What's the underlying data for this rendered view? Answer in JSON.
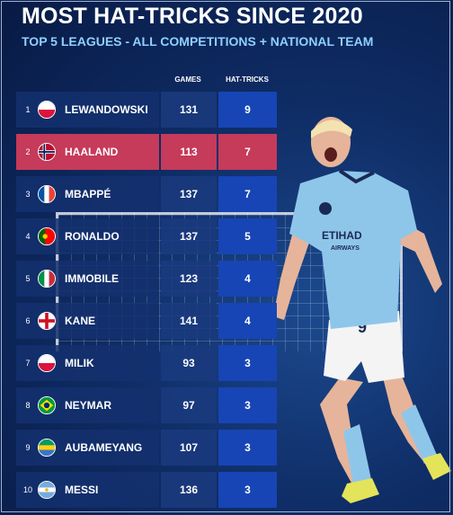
{
  "title": "MOST HAT-TRICKS SINCE 2020",
  "subtitle": "TOP 5 LEAGUES - ALL COMPETITIONS + NATIONAL TEAM",
  "columns": {
    "games": "GAMES",
    "hat_tricks": "HAT-TRICKS"
  },
  "colors": {
    "highlight": "#c63a5a",
    "hat_cell": "#1745b5",
    "subtitle": "#8fd0ff"
  },
  "rows": [
    {
      "rank": "1",
      "flag": "poland-flag-icon",
      "name": "LEWANDOWSKI",
      "games": "131",
      "hat_tricks": "9"
    },
    {
      "rank": "2",
      "flag": "norway-flag-icon",
      "name": "HAALAND",
      "games": "113",
      "hat_tricks": "7",
      "highlight": true
    },
    {
      "rank": "3",
      "flag": "france-flag-icon",
      "name": "MBAPPÉ",
      "games": "137",
      "hat_tricks": "7"
    },
    {
      "rank": "4",
      "flag": "portugal-flag-icon",
      "name": "RONALDO",
      "games": "137",
      "hat_tricks": "5"
    },
    {
      "rank": "5",
      "flag": "italy-flag-icon",
      "name": "IMMOBILE",
      "games": "123",
      "hat_tricks": "4"
    },
    {
      "rank": "6",
      "flag": "england-flag-icon",
      "name": "KANE",
      "games": "141",
      "hat_tricks": "4"
    },
    {
      "rank": "7",
      "flag": "poland-flag-icon",
      "name": "MILIK",
      "games": "93",
      "hat_tricks": "3"
    },
    {
      "rank": "8",
      "flag": "brazil-flag-icon",
      "name": "NEYMAR",
      "games": "97",
      "hat_tricks": "3"
    },
    {
      "rank": "9",
      "flag": "gabon-flag-icon",
      "name": "AUBAMEYANG",
      "games": "107",
      "hat_tricks": "3"
    },
    {
      "rank": "10",
      "flag": "argentina-flag-icon",
      "name": "MESSI",
      "games": "136",
      "hat_tricks": "3"
    }
  ],
  "player": {
    "shirt_number": "9",
    "sponsor": "ETIHAD",
    "sponsor_sub": "AIRWAYS"
  }
}
